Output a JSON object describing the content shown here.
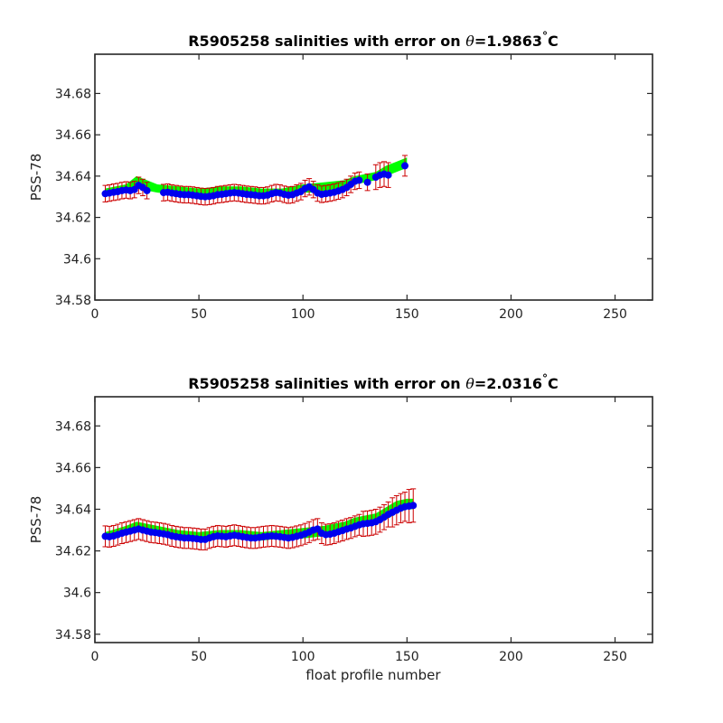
{
  "colors": {
    "band": "#00ff00",
    "error_bars": "#cc0000",
    "points": "#0000ee",
    "axes": "#262626"
  },
  "chart_data": [
    {
      "type": "scatter",
      "title": "R5905258 salinities with error on θ=1.9863°C",
      "title_prefix": "R5905258 salinities with error on ",
      "title_symbol": "θ",
      "title_value": "=1.9863",
      "title_degree": "°",
      "title_unit": "C",
      "xlabel": "",
      "ylabel": "PSS-78",
      "xlim": [
        0,
        268
      ],
      "ylim": [
        34.58,
        34.699
      ],
      "xticks": [
        0,
        50,
        100,
        150,
        200,
        250
      ],
      "yticks": [
        34.58,
        34.6,
        34.62,
        34.64,
        34.66,
        34.68
      ],
      "ytick_labels": [
        "34.58",
        "34.6",
        "34.62",
        "34.64",
        "34.66",
        "34.68"
      ],
      "grid": false,
      "legend": "none",
      "series": [
        {
          "role": "error_band",
          "x": [
            5,
            15,
            20,
            25,
            30,
            40,
            50,
            60,
            70,
            80,
            90,
            100,
            110,
            120,
            125,
            130,
            135,
            140,
            145,
            150
          ],
          "lower": [
            34.631,
            34.632,
            34.634,
            34.633,
            34.632,
            34.631,
            34.63,
            34.631,
            34.631,
            34.63,
            34.631,
            34.632,
            34.632,
            34.634,
            34.636,
            34.637,
            34.638,
            34.64,
            34.642,
            34.644
          ],
          "upper": [
            34.634,
            34.636,
            34.64,
            34.638,
            34.636,
            34.635,
            34.634,
            34.635,
            34.635,
            34.634,
            34.634,
            34.636,
            34.637,
            34.638,
            34.64,
            34.641,
            34.642,
            34.645,
            34.647,
            34.649
          ]
        },
        {
          "role": "points_with_error",
          "x": [
            5,
            7,
            9,
            11,
            13,
            15,
            17,
            19,
            21,
            23,
            25,
            33,
            35,
            37,
            39,
            41,
            43,
            45,
            47,
            49,
            51,
            53,
            55,
            57,
            59,
            61,
            63,
            65,
            67,
            69,
            71,
            73,
            75,
            77,
            79,
            81,
            83,
            85,
            87,
            89,
            91,
            93,
            95,
            97,
            99,
            101,
            103,
            105,
            107,
            109,
            111,
            113,
            115,
            117,
            119,
            121,
            123,
            125,
            127,
            131,
            135,
            137,
            139,
            141,
            149
          ],
          "y": [
            34.6315,
            34.6318,
            34.6322,
            34.6325,
            34.633,
            34.6333,
            34.633,
            34.6335,
            34.6355,
            34.6345,
            34.633,
            34.632,
            34.6322,
            34.6318,
            34.6315,
            34.6312,
            34.631,
            34.631,
            34.6308,
            34.6305,
            34.6302,
            34.63,
            34.6302,
            34.6305,
            34.631,
            34.6312,
            34.6315,
            34.6318,
            34.632,
            34.6318,
            34.6315,
            34.6312,
            34.631,
            34.6308,
            34.6305,
            34.6305,
            34.6308,
            34.6315,
            34.632,
            34.6318,
            34.6312,
            34.6308,
            34.631,
            34.6318,
            34.6325,
            34.634,
            34.6348,
            34.6335,
            34.6318,
            34.6312,
            34.6315,
            34.6318,
            34.6322,
            34.6328,
            34.6335,
            34.6345,
            34.636,
            34.6375,
            34.638,
            34.637,
            34.6395,
            34.6405,
            34.641,
            34.6405,
            34.645
          ],
          "err": [
            0.004,
            0.004,
            0.004,
            0.004,
            0.004,
            0.004,
            0.004,
            0.004,
            0.004,
            0.004,
            0.004,
            0.004,
            0.004,
            0.004,
            0.004,
            0.004,
            0.004,
            0.004,
            0.004,
            0.004,
            0.004,
            0.004,
            0.004,
            0.004,
            0.004,
            0.004,
            0.004,
            0.004,
            0.004,
            0.004,
            0.004,
            0.004,
            0.004,
            0.004,
            0.004,
            0.004,
            0.004,
            0.004,
            0.004,
            0.004,
            0.004,
            0.004,
            0.004,
            0.004,
            0.004,
            0.004,
            0.004,
            0.004,
            0.004,
            0.004,
            0.004,
            0.004,
            0.004,
            0.004,
            0.004,
            0.004,
            0.004,
            0.004,
            0.004,
            0.004,
            0.006,
            0.006,
            0.006,
            0.006,
            0.005
          ]
        }
      ]
    },
    {
      "type": "scatter",
      "title": "R5905258 salinities with error on θ=2.0316°C",
      "title_prefix": "R5905258 salinities with error on ",
      "title_symbol": "θ",
      "title_value": "=2.0316",
      "title_degree": "°",
      "title_unit": "C",
      "xlabel": "float profile number",
      "ylabel": "PSS-78",
      "xlim": [
        0,
        268
      ],
      "ylim": [
        34.576,
        34.694
      ],
      "xticks": [
        0,
        50,
        100,
        150,
        200,
        250
      ],
      "yticks": [
        34.58,
        34.6,
        34.62,
        34.64,
        34.66,
        34.68
      ],
      "ytick_labels": [
        "34.58",
        "34.6",
        "34.62",
        "34.64",
        "34.66",
        "34.68"
      ],
      "grid": false,
      "legend": "none",
      "series": [
        {
          "role": "error_band",
          "x": [
            5,
            15,
            20,
            25,
            30,
            40,
            50,
            60,
            70,
            80,
            90,
            100,
            110,
            120,
            125,
            130,
            135,
            140,
            145,
            150,
            153
          ],
          "lower": [
            34.626,
            34.628,
            34.63,
            34.629,
            34.628,
            34.626,
            34.625,
            34.626,
            34.626,
            34.625,
            34.626,
            34.626,
            34.627,
            34.629,
            34.631,
            34.632,
            34.633,
            34.635,
            34.638,
            34.64,
            34.64
          ],
          "upper": [
            34.629,
            34.632,
            34.634,
            34.633,
            34.632,
            34.63,
            34.629,
            34.63,
            34.63,
            34.629,
            34.63,
            34.631,
            34.632,
            34.634,
            34.636,
            34.637,
            34.638,
            34.641,
            34.644,
            34.645,
            34.645
          ]
        },
        {
          "role": "points_with_error",
          "x": [
            5,
            7,
            9,
            11,
            13,
            15,
            17,
            19,
            21,
            23,
            25,
            27,
            29,
            31,
            33,
            35,
            37,
            39,
            41,
            43,
            45,
            47,
            49,
            51,
            53,
            55,
            57,
            59,
            61,
            63,
            65,
            67,
            69,
            71,
            73,
            75,
            77,
            79,
            81,
            83,
            85,
            87,
            89,
            91,
            93,
            95,
            97,
            99,
            101,
            103,
            105,
            107,
            109,
            111,
            113,
            115,
            117,
            119,
            121,
            123,
            125,
            127,
            129,
            131,
            133,
            135,
            137,
            139,
            141,
            143,
            145,
            147,
            149,
            151,
            153
          ],
          "y": [
            34.627,
            34.6268,
            34.6272,
            34.6278,
            34.6285,
            34.629,
            34.6295,
            34.63,
            34.6305,
            34.63,
            34.6295,
            34.629,
            34.6288,
            34.6285,
            34.6282,
            34.6278,
            34.6272,
            34.6268,
            34.6265,
            34.6262,
            34.6262,
            34.626,
            34.6258,
            34.6255,
            34.6255,
            34.6262,
            34.6268,
            34.6272,
            34.627,
            34.6268,
            34.6272,
            34.6275,
            34.6272,
            34.6268,
            34.6265,
            34.6262,
            34.6262,
            34.6265,
            34.6268,
            34.627,
            34.6272,
            34.627,
            34.6268,
            34.6265,
            34.6262,
            34.6265,
            34.627,
            34.6275,
            34.6282,
            34.629,
            34.63,
            34.6305,
            34.6285,
            34.6278,
            34.628,
            34.6285,
            34.6292,
            34.6298,
            34.6305,
            34.631,
            34.6318,
            34.6325,
            34.633,
            34.6332,
            34.6335,
            34.634,
            34.635,
            34.6362,
            34.6375,
            34.6385,
            34.6395,
            34.6405,
            34.6412,
            34.6415,
            34.6418
          ],
          "err": [
            0.005,
            0.005,
            0.005,
            0.005,
            0.005,
            0.005,
            0.005,
            0.005,
            0.005,
            0.005,
            0.005,
            0.005,
            0.005,
            0.005,
            0.005,
            0.005,
            0.005,
            0.005,
            0.005,
            0.005,
            0.005,
            0.005,
            0.005,
            0.005,
            0.005,
            0.005,
            0.005,
            0.005,
            0.005,
            0.005,
            0.005,
            0.005,
            0.005,
            0.005,
            0.005,
            0.005,
            0.005,
            0.005,
            0.005,
            0.005,
            0.005,
            0.005,
            0.005,
            0.005,
            0.005,
            0.005,
            0.005,
            0.005,
            0.005,
            0.005,
            0.005,
            0.005,
            0.005,
            0.005,
            0.005,
            0.005,
            0.005,
            0.005,
            0.005,
            0.005,
            0.005,
            0.005,
            0.006,
            0.006,
            0.006,
            0.006,
            0.006,
            0.006,
            0.006,
            0.007,
            0.007,
            0.007,
            0.007,
            0.008,
            0.008
          ]
        }
      ]
    }
  ]
}
